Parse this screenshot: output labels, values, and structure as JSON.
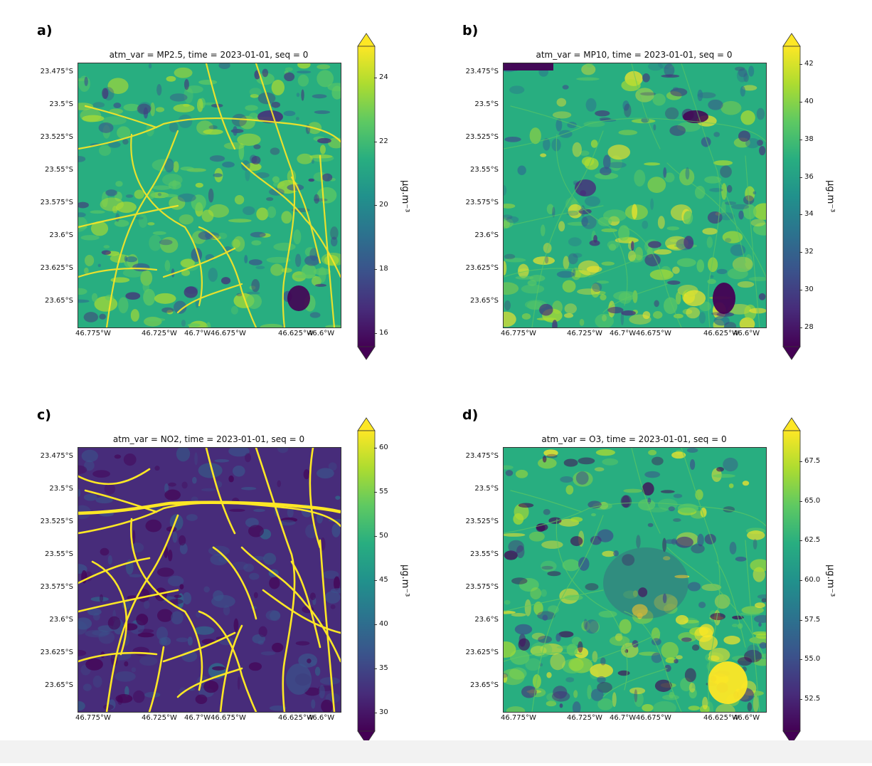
{
  "colors": {
    "viridis": [
      "#440154",
      "#472c7a",
      "#3b528b",
      "#2c728e",
      "#21918c",
      "#28ae80",
      "#5ec962",
      "#addc30",
      "#fde725"
    ]
  },
  "x_ticks": [
    "46.775°W",
    "46.725°W",
    "46.7°W",
    "46.675°W",
    "46.625°W",
    "46.6°W"
  ],
  "y_ticks": [
    "23.475°S",
    "23.5°S",
    "23.525°S",
    "23.55°S",
    "23.575°S",
    "23.6°S",
    "23.625°S",
    "23.65°S"
  ],
  "unit": "μg.m⁻³",
  "panels": [
    {
      "label": "a)",
      "title": "atm_var = MP2.5, time = 2023-01-01, seq = 0",
      "variable": "MP2.5",
      "cbar_ticks": [
        "24",
        "22",
        "20",
        "18",
        "16"
      ],
      "cbar_range": [
        15.6,
        25
      ]
    },
    {
      "label": "b)",
      "title": "atm_var = MP10, time = 2023-01-01, seq = 0",
      "variable": "MP10",
      "cbar_ticks": [
        "42",
        "40",
        "38",
        "36",
        "34",
        "32",
        "30",
        "28"
      ],
      "cbar_range": [
        27,
        43
      ]
    },
    {
      "label": "c)",
      "title": "atm_var = NO2, time = 2023-01-01, seq = 0",
      "variable": "NO2",
      "cbar_ticks": [
        "60",
        "55",
        "50",
        "45",
        "40",
        "35",
        "30"
      ],
      "cbar_range": [
        28,
        62
      ]
    },
    {
      "label": "d)",
      "title": "atm_var = O3, time = 2023-01-01, seq = 0",
      "variable": "O3",
      "cbar_ticks": [
        "67.5",
        "65.0",
        "62.5",
        "60.0",
        "57.5",
        "55.0",
        "52.5"
      ],
      "cbar_range": [
        50.5,
        69.5
      ]
    }
  ]
}
